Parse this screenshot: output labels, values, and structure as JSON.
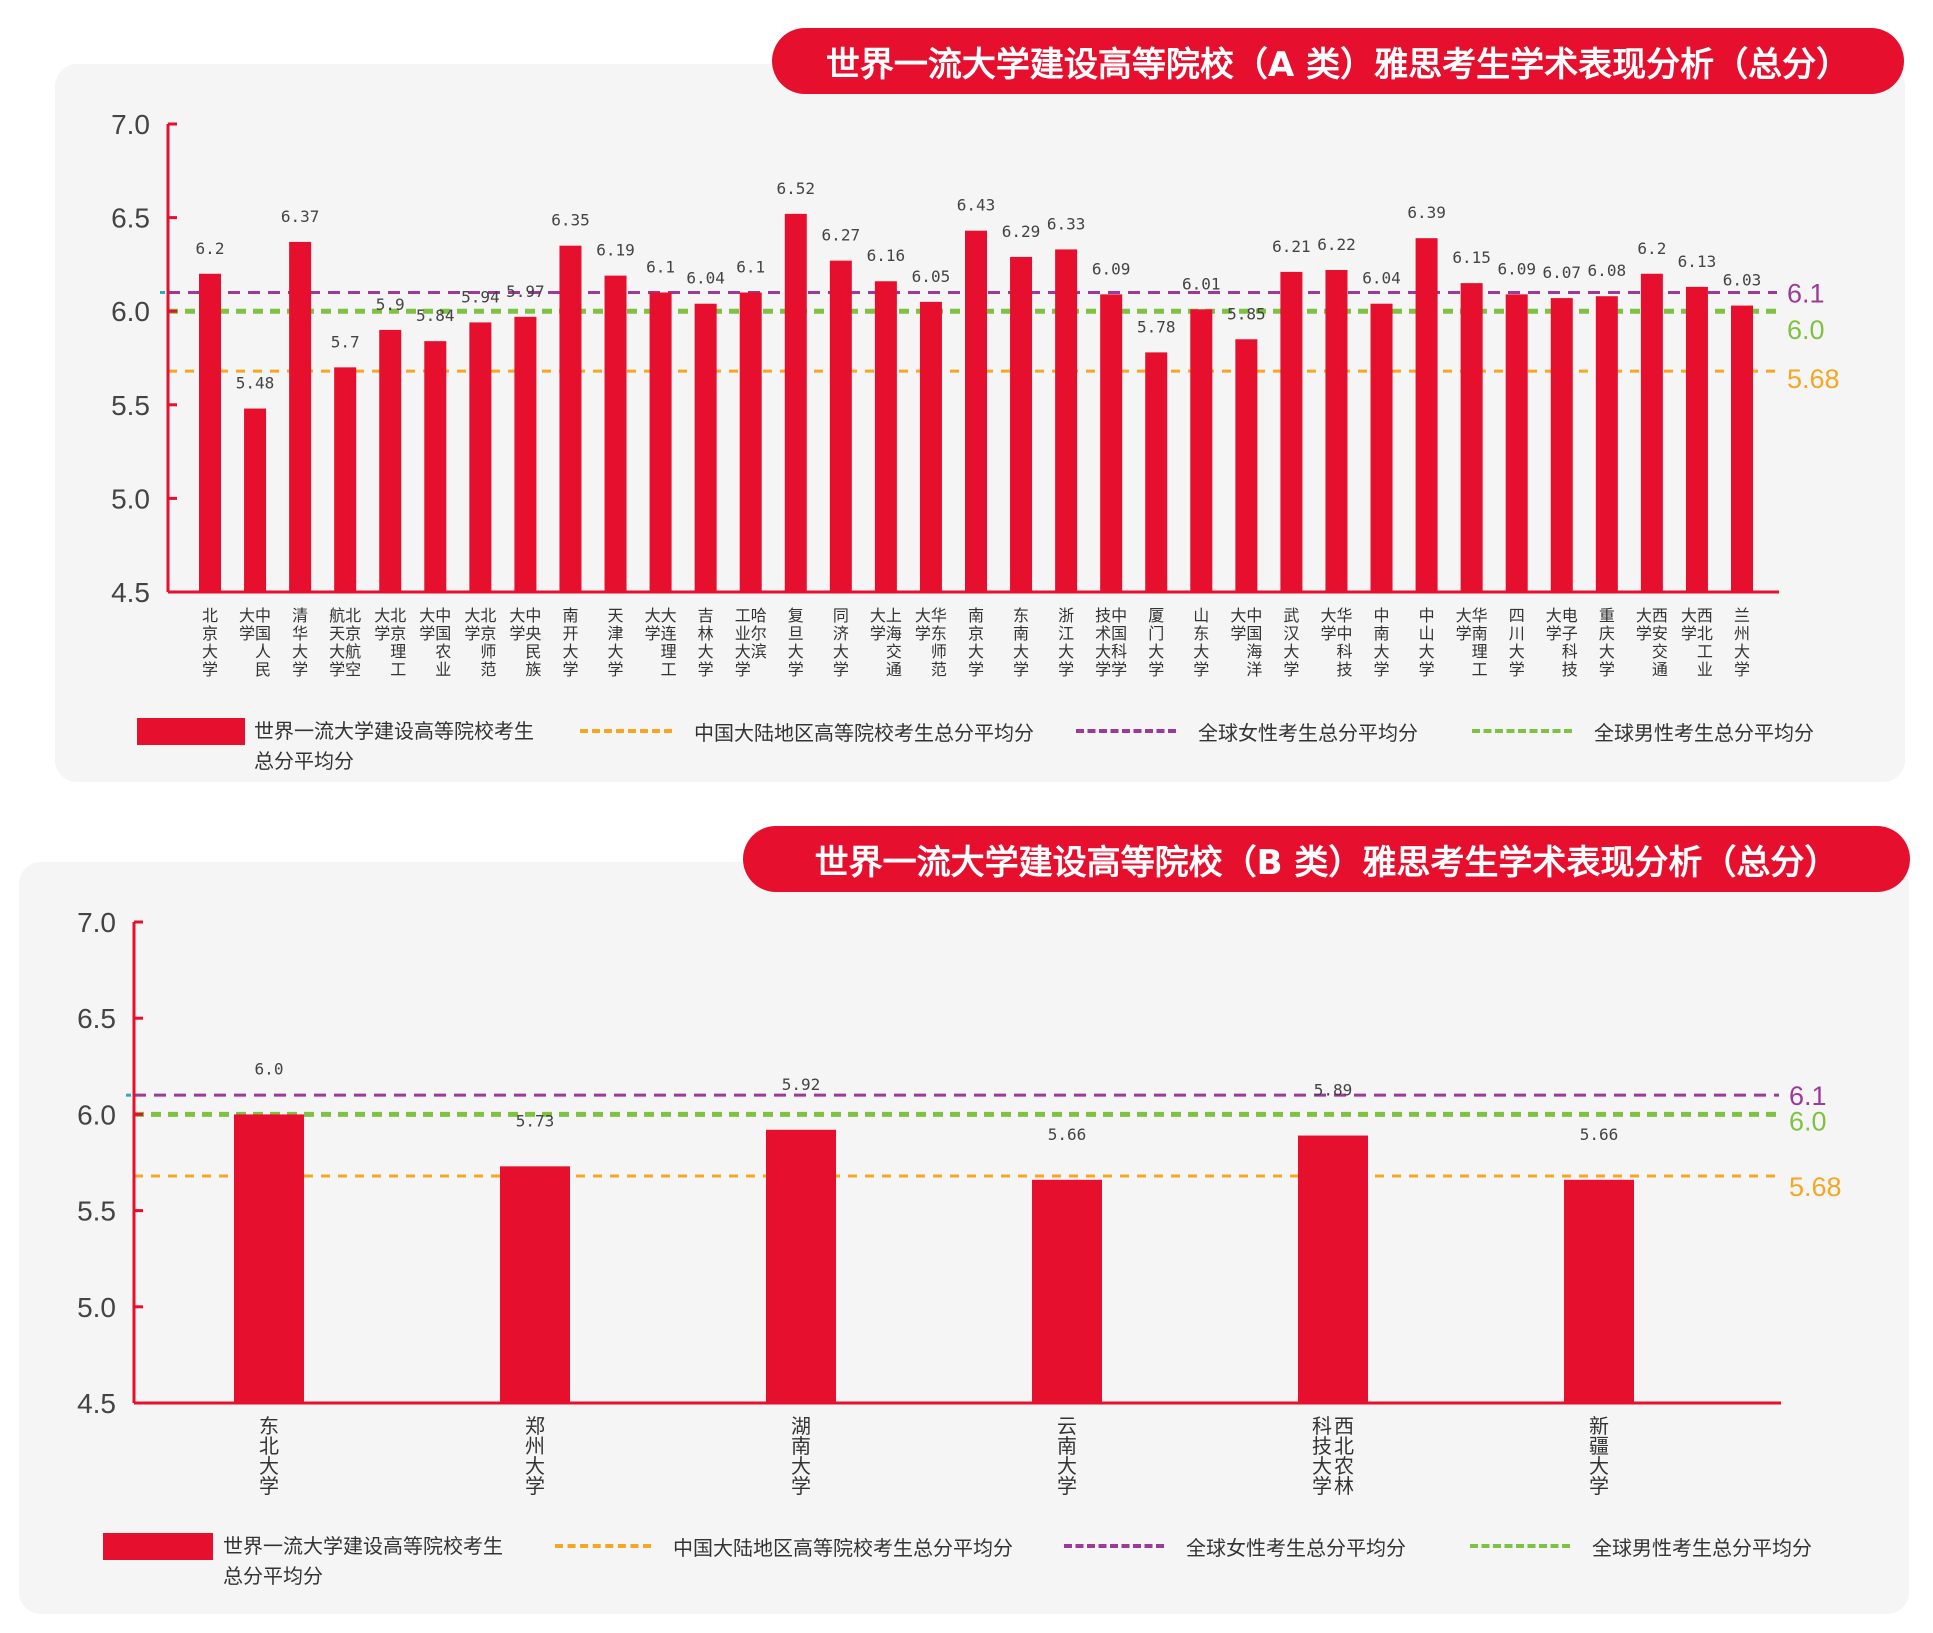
{
  "chart_data": [
    {
      "type": "bar",
      "title": "世界一流大学建设高等院校（A 类）雅思考生学术表现分析（总分）",
      "categories": [
        "北京大学",
        "中国人民大学",
        "清华大学",
        "北京航空航天大学",
        "北京理工大学",
        "中国农业大学",
        "北京师范大学",
        "中央民族大学",
        "南开大学",
        "天津大学",
        "大连理工大学",
        "吉林大学",
        "哈尔滨工业大学",
        "复旦大学",
        "同济大学",
        "上海交通大学",
        "华东师范大学",
        "南京大学",
        "东南大学",
        "浙江大学",
        "中国科学技术大学",
        "厦门大学",
        "山东大学",
        "中国海洋大学",
        "武汉大学",
        "华中科技大学",
        "中南大学",
        "中山大学",
        "华南理工大学",
        "四川大学",
        "电子科技大学",
        "重庆大学",
        "西安交通大学",
        "西北工业大学",
        "兰州大学"
      ],
      "category_lines": [
        [
          "北京大学"
        ],
        [
          "中国人民",
          "大学"
        ],
        [
          "清华大学"
        ],
        [
          "北京航空",
          "航天大学"
        ],
        [
          "北京理工",
          "大学"
        ],
        [
          "中国农业",
          "大学"
        ],
        [
          "北京师范",
          "大学"
        ],
        [
          "中央民族",
          "大学"
        ],
        [
          "南开大学"
        ],
        [
          "天津大学"
        ],
        [
          "大连理工",
          "大学"
        ],
        [
          "吉林大学"
        ],
        [
          "哈尔滨",
          "工业大学"
        ],
        [
          "复旦大学"
        ],
        [
          "同济大学"
        ],
        [
          "上海交通",
          "大学"
        ],
        [
          "华东师范",
          "大学"
        ],
        [
          "南京大学"
        ],
        [
          "东南大学"
        ],
        [
          "浙江大学"
        ],
        [
          "中国科学",
          "技术大学"
        ],
        [
          "厦门大学"
        ],
        [
          "山东大学"
        ],
        [
          "中国海洋",
          "大学"
        ],
        [
          "武汉大学"
        ],
        [
          "华中科技",
          "大学"
        ],
        [
          "中南大学"
        ],
        [
          "中山大学"
        ],
        [
          "华南理工",
          "大学"
        ],
        [
          "四川大学"
        ],
        [
          "电子科技",
          "大学"
        ],
        [
          "重庆大学"
        ],
        [
          "西安交通",
          "大学"
        ],
        [
          "西北工业",
          "大学"
        ],
        [
          "兰州大学"
        ]
      ],
      "values": [
        6.2,
        5.48,
        6.37,
        5.7,
        5.9,
        5.84,
        5.94,
        5.97,
        6.35,
        6.19,
        6.1,
        6.04,
        6.1,
        6.52,
        6.27,
        6.16,
        6.05,
        6.43,
        6.29,
        6.33,
        6.09,
        5.78,
        6.01,
        5.85,
        6.21,
        6.22,
        6.04,
        6.39,
        6.15,
        6.09,
        6.07,
        6.08,
        6.2,
        6.13,
        6.03
      ],
      "value_labels": [
        "6.2",
        "5.48",
        "6.37",
        "5.7",
        "5.9",
        "5.84",
        "5.94",
        "5.97",
        "6.35",
        "6.19",
        "6.1",
        "6.04",
        "6.1",
        "6.52",
        "6.27",
        "6.16",
        "6.05",
        "6.43",
        "6.29",
        "6.33",
        "6.09",
        "5.78",
        "6.01",
        "5.85",
        "6.21",
        "6.22",
        "6.04",
        "6.39",
        "6.15",
        "6.09",
        "6.07",
        "6.08",
        "6.2",
        "6.13",
        "6.03"
      ],
      "ylim": [
        4.5,
        7.0
      ],
      "yticks": [
        "4.5",
        "5.0",
        "5.5",
        "6.0",
        "6.5",
        "7.0"
      ],
      "reference_lines": [
        {
          "name": "全球女性考生总分平均分",
          "value": 6.1,
          "label": "6.1",
          "color": "#9b3a97"
        },
        {
          "name": "全球男性考生总分平均分",
          "value": 6.0,
          "label": "6.0",
          "color": "#7fc241"
        },
        {
          "name": "中国大陆地区高等院校考生总分平均分",
          "value": 5.68,
          "label": "5.68",
          "color": "#f5a623"
        }
      ],
      "bar_color": "#e60f2d",
      "axis_color": "#e60f2d",
      "grid": false
    },
    {
      "type": "bar",
      "title": "世界一流大学建设高等院校（B 类）雅思考生学术表现分析（总分）",
      "categories": [
        "东北大学",
        "郑州大学",
        "湖南大学",
        "云南大学",
        "西北农林科技大学",
        "新疆大学"
      ],
      "category_lines": [
        [
          "东北大学"
        ],
        [
          "郑州大学"
        ],
        [
          "湖南大学"
        ],
        [
          "云南大学"
        ],
        [
          "西北农林",
          "科技大学"
        ],
        [
          "新疆大学"
        ]
      ],
      "values": [
        6.0,
        5.73,
        5.92,
        5.66,
        5.89,
        5.66
      ],
      "value_labels": [
        "6.0",
        "5.73",
        "5.92",
        "5.66",
        "5.89",
        "5.66"
      ],
      "ylim": [
        4.5,
        7.0
      ],
      "yticks": [
        "4.5",
        "5.0",
        "5.5",
        "6.0",
        "6.5",
        "7.0"
      ],
      "reference_lines": [
        {
          "name": "全球女性考生总分平均分",
          "value": 6.1,
          "label": "6.1",
          "color": "#9b3a97"
        },
        {
          "name": "全球男性考生总分平均分",
          "value": 6.0,
          "label": "6.0",
          "color": "#7fc241"
        },
        {
          "name": "中国大陆地区高等院校考生总分平均分",
          "value": 5.68,
          "label": "5.68",
          "color": "#f5a623"
        }
      ],
      "bar_color": "#e60f2d",
      "axis_color": "#e60f2d",
      "grid": false
    }
  ],
  "legend": {
    "bar_line1": "世界一流大学建设高等院校考生",
    "bar_line2": "总分平均分",
    "mainland": "中国大陆地区高等院校考生总分平均分",
    "female": "全球女性考生总分平均分",
    "male": "全球男性考生总分平均分",
    "placement": "bottom"
  }
}
